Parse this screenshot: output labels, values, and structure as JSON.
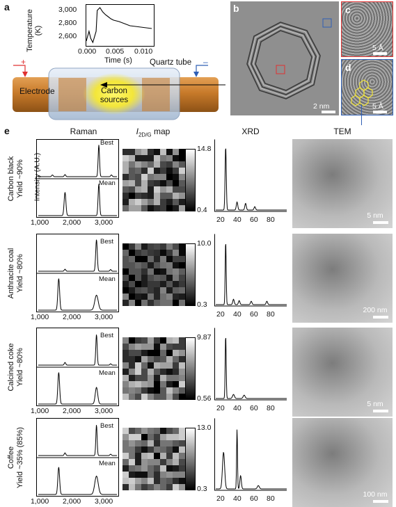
{
  "panels": {
    "a": "a",
    "b": "b",
    "c": "c",
    "d": "d",
    "e": "e"
  },
  "panel_a": {
    "temp_ylabel": "Temperature",
    "temp_unit": "(K)",
    "temp_yticks": [
      "3,000",
      "2,800",
      "2,600"
    ],
    "time_xticks": [
      "0.000",
      "0.005",
      "0.010"
    ],
    "time_xlabel": "Time (s)",
    "plus": "+",
    "minus": "–",
    "quartz_label": "Quartz tube",
    "electrode_label": "Electrode",
    "carbon_label_1": "Carbon",
    "carbon_label_2": "sources",
    "trace_y": [
      2580,
      2720,
      2620,
      2560,
      2720,
      3020,
      3060,
      3000,
      2960,
      2930,
      2900,
      2880,
      2860,
      2830,
      2800,
      2790,
      2780,
      2770,
      2760
    ],
    "trace_t": [
      0.0,
      0.0005,
      0.0008,
      0.0012,
      0.0018,
      0.002,
      0.0025,
      0.003,
      0.0035,
      0.004,
      0.0045,
      0.005,
      0.006,
      0.007,
      0.008,
      0.009,
      0.01,
      0.011,
      0.012
    ]
  },
  "panel_b": {
    "scale": "2 nm"
  },
  "panel_c": {
    "scale": "5 Å"
  },
  "panel_d": {
    "scale": "5 Å"
  },
  "panel_e": {
    "headers": {
      "raman": "Raman",
      "map": "map",
      "xrd": "XRD",
      "tem": "TEM"
    },
    "raman_ylabel": "Intensity (A.U.)",
    "best": "Best",
    "mean": "Mean",
    "raman_xticks": [
      "1,000",
      "2,000",
      "3,000"
    ],
    "xrd_xticks": [
      "20",
      "40",
      "60",
      "80"
    ],
    "rows": [
      {
        "name": "Carbon black",
        "yield": "Yield ~90%",
        "map_max": "14.8",
        "map_min": "0.4",
        "tem_scale": "5 nm"
      },
      {
        "name": "Anthracite coal",
        "yield": "Yield ~80%",
        "map_max": "10.0",
        "map_min": "0.3",
        "tem_scale": "200 nm"
      },
      {
        "name": "Calcined coke",
        "yield": "Yield ~80%",
        "map_max": "9.87",
        "map_min": "0.56",
        "tem_scale": "5 nm"
      },
      {
        "name": "Coffee",
        "yield": "Yield ~35% (85%)",
        "map_max": "13.0",
        "map_min": "0.3",
        "tem_scale": "100 nm"
      }
    ]
  },
  "colors": {
    "electrode": "#c77a2a",
    "carbon_glow": "#f3e63a",
    "quartz": "#c9d8ea",
    "red_box": "#e03030",
    "blue_box": "#2f5fb5"
  }
}
